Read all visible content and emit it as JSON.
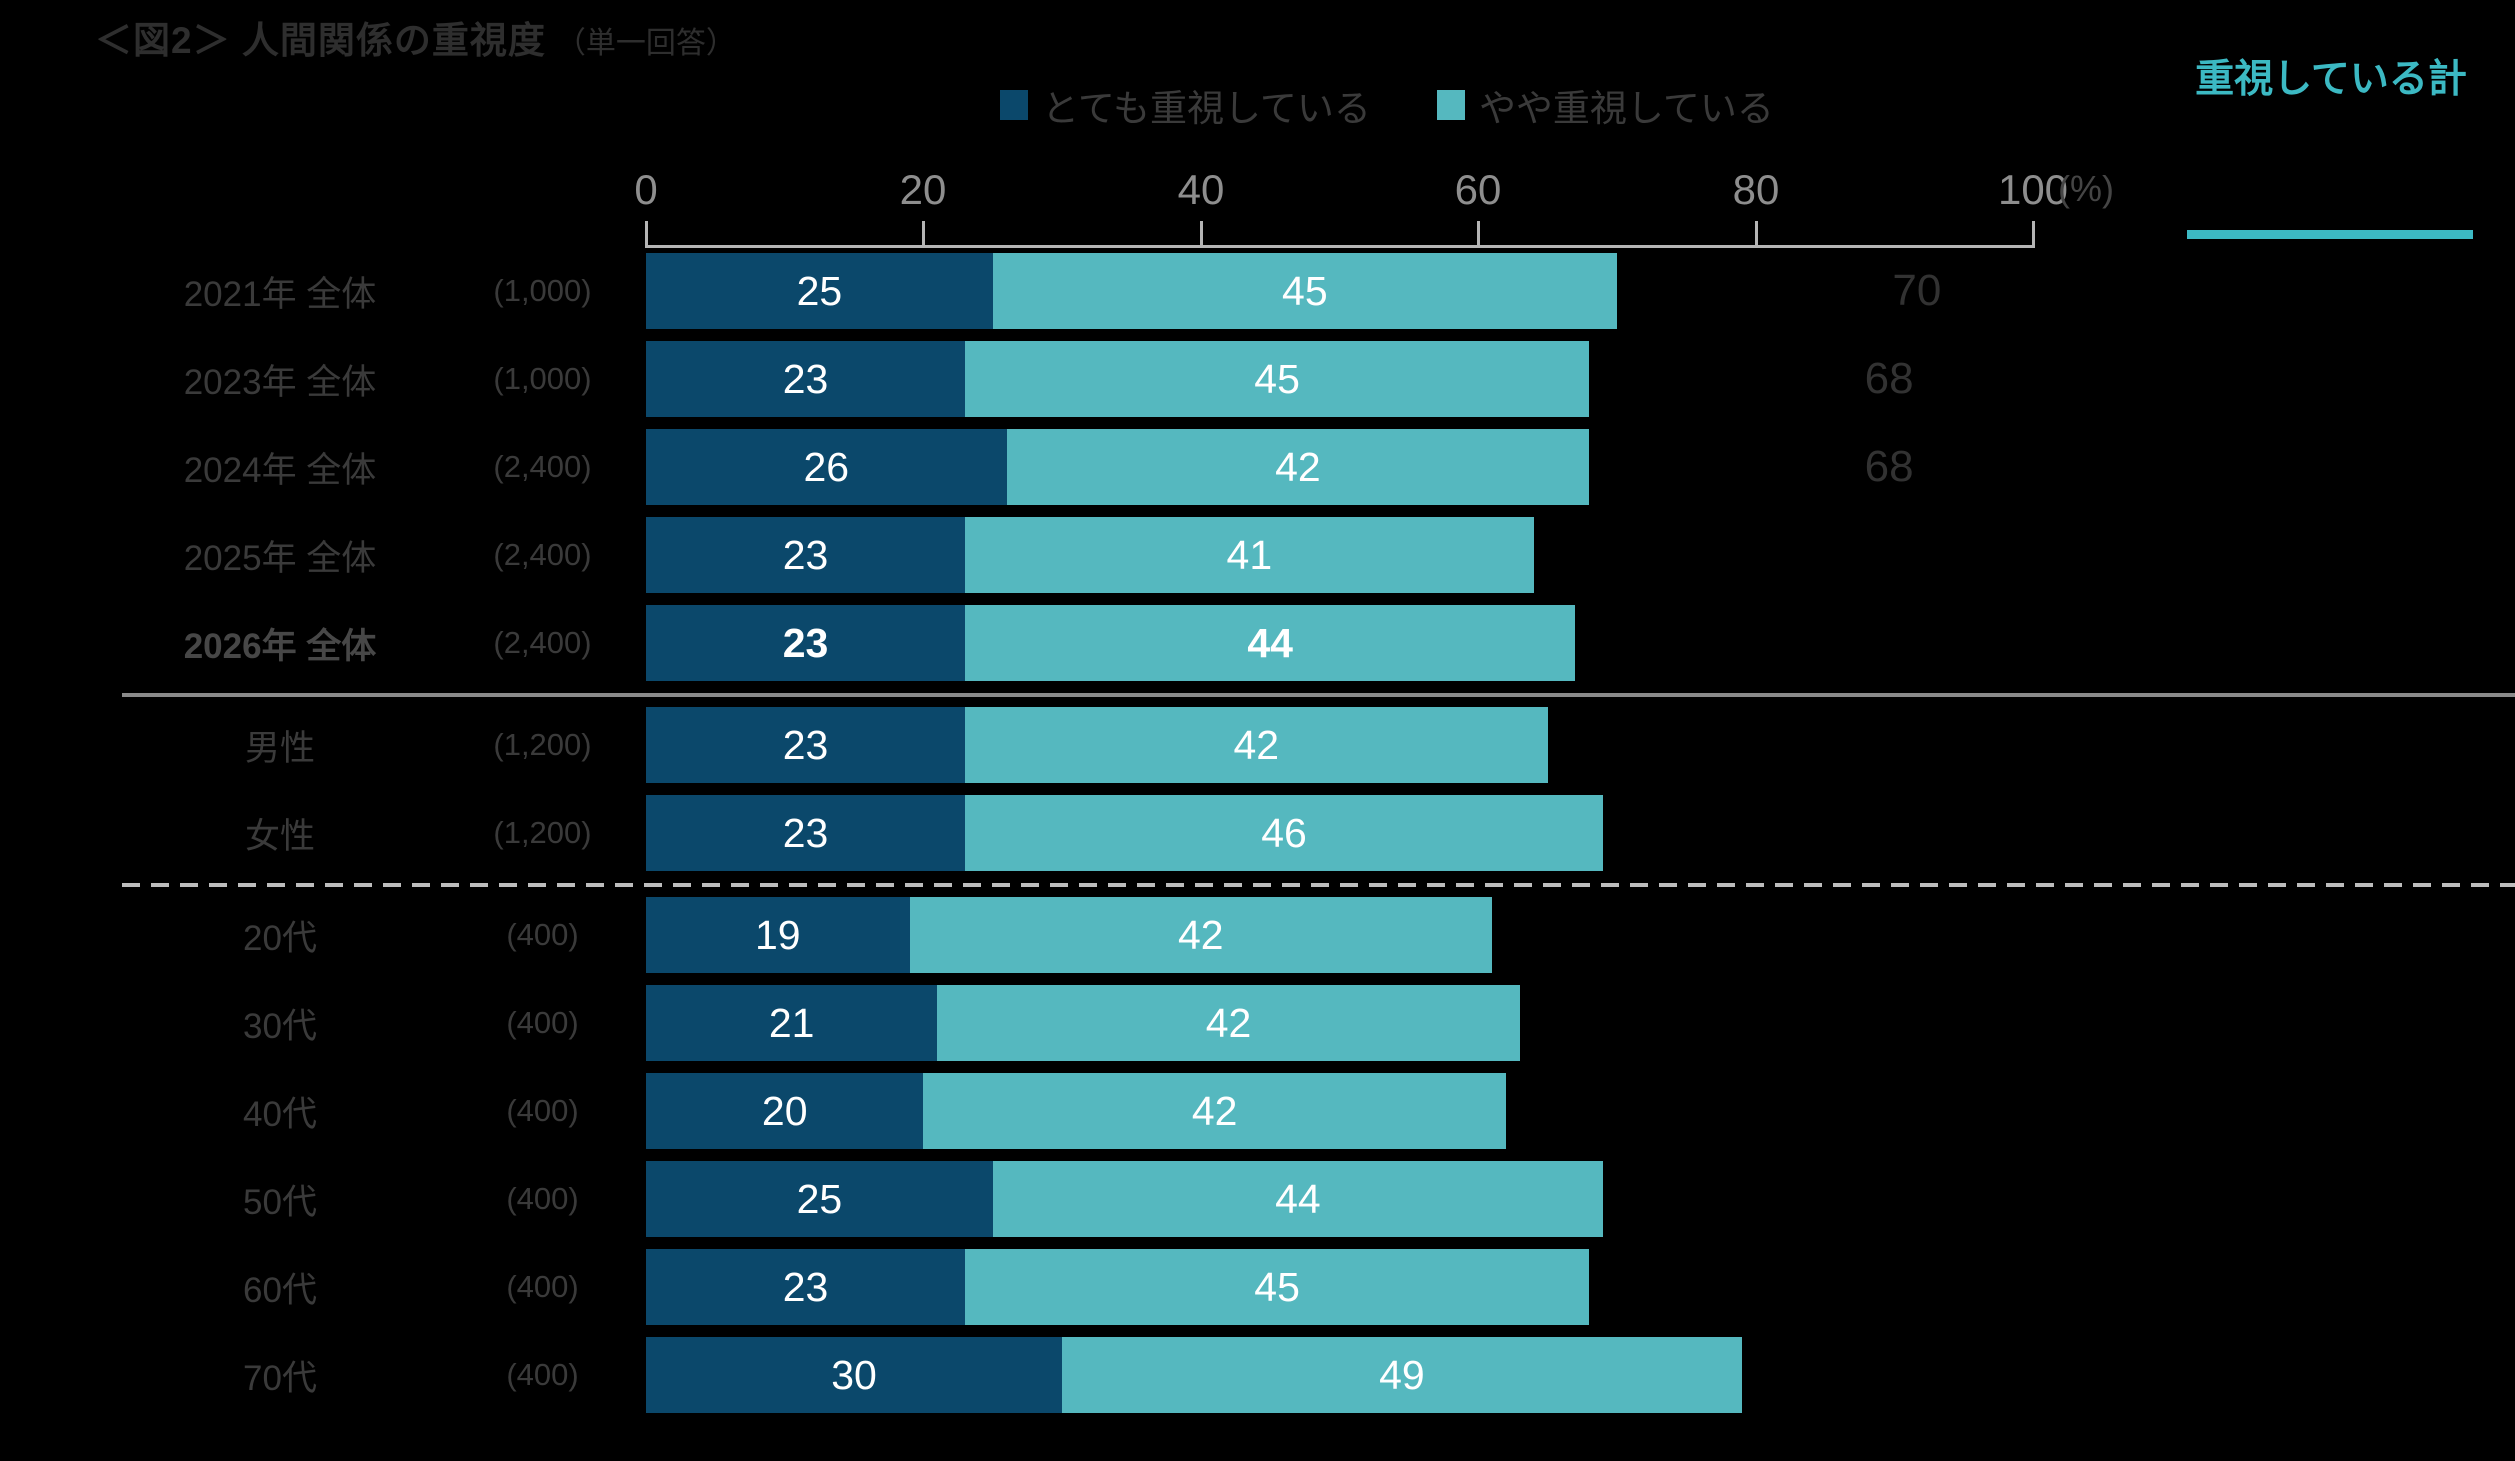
{
  "chart_data": {
    "type": "bar",
    "stacked": true,
    "orientation": "horizontal",
    "title": "＜図2＞ 人間関係の重視度",
    "title_note": "（単一回答）",
    "legend_position": "top",
    "legend": [
      {
        "name": "とても重視している",
        "color": "#0b486b"
      },
      {
        "name": "やや重視している",
        "color": "#55b8bf"
      }
    ],
    "axis": {
      "min": 0,
      "max": 100,
      "ticks": [
        0,
        20,
        40,
        60,
        80,
        100
      ],
      "unit": "(%)"
    },
    "total_column_header": "重視している計",
    "colors": {
      "series_1": "#0b486b",
      "series_2": "#55b8bf",
      "accent_teal": "#3cb9c3"
    },
    "rows": [
      {
        "label": "2021年 全体",
        "n": "(1,000)",
        "values": [
          25,
          45
        ],
        "total": 70
      },
      {
        "label": "2023年 全体",
        "n": "(1,000)",
        "values": [
          23,
          45
        ],
        "total": 68
      },
      {
        "label": "2024年 全体",
        "n": "(2,400)",
        "values": [
          26,
          42
        ],
        "total": 68
      },
      {
        "label": "2025年 全体",
        "n": "(2,400)",
        "values": [
          23,
          41
        ],
        "total": null
      },
      {
        "label": "2026年 全体",
        "n": "(2,400)",
        "values": [
          23,
          44
        ],
        "total": null,
        "bold": true,
        "separator_after": "solid"
      },
      {
        "label": "男性",
        "n": "(1,200)",
        "values": [
          23,
          42
        ],
        "total": null
      },
      {
        "label": "女性",
        "n": "(1,200)",
        "values": [
          23,
          46
        ],
        "total": null,
        "separator_after": "dashed"
      },
      {
        "label": "20代",
        "n": "(400)",
        "values": [
          19,
          42
        ],
        "total": null
      },
      {
        "label": "30代",
        "n": "(400)",
        "values": [
          21,
          42
        ],
        "total": null
      },
      {
        "label": "40代",
        "n": "(400)",
        "values": [
          20,
          42
        ],
        "total": null
      },
      {
        "label": "50代",
        "n": "(400)",
        "values": [
          25,
          44
        ],
        "total": null
      },
      {
        "label": "60代",
        "n": "(400)",
        "values": [
          23,
          45
        ],
        "total": null
      },
      {
        "label": "70代",
        "n": "(400)",
        "values": [
          30,
          49
        ],
        "total": null
      }
    ]
  }
}
